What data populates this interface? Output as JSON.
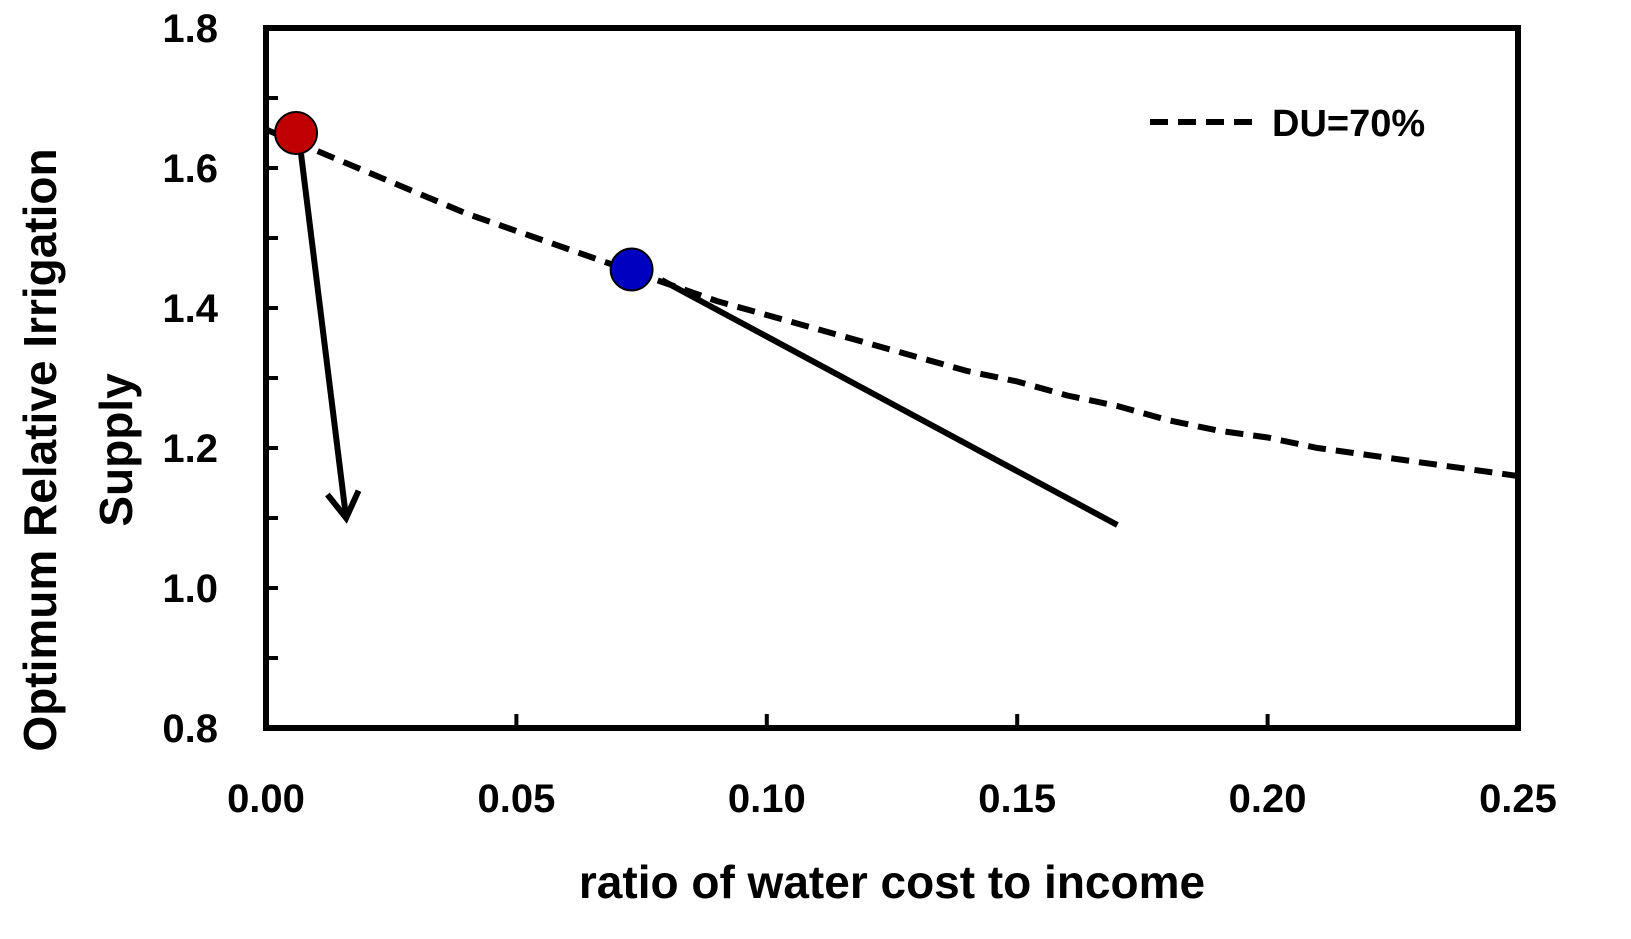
{
  "chart_data": {
    "type": "line",
    "xlabel": "ratio of water cost to income",
    "ylabel": [
      "Optimum Relative Irrigation",
      "Supply"
    ],
    "xlim": [
      0,
      0.25
    ],
    "ylim": [
      0.8,
      1.8
    ],
    "x_ticks": [
      0.0,
      0.05,
      0.1,
      0.15,
      0.2,
      0.25
    ],
    "x_tick_labels": [
      "0.00",
      "0.05",
      "0.10",
      "0.15",
      "0.20",
      "0.25"
    ],
    "y_ticks": [
      0.8,
      1.0,
      1.2,
      1.4,
      1.6,
      1.8
    ],
    "y_tick_labels": [
      "0.8",
      "1.0",
      "1.2",
      "1.4",
      "1.6",
      "1.8"
    ],
    "grid": false,
    "legend_position": "top-right",
    "series": [
      {
        "name": "DU=70%",
        "style": "dashed",
        "color": "#000000",
        "x": [
          0.0,
          0.01,
          0.02,
          0.03,
          0.04,
          0.05,
          0.06,
          0.07,
          0.08,
          0.09,
          0.1,
          0.11,
          0.12,
          0.13,
          0.14,
          0.15,
          0.16,
          0.17,
          0.18,
          0.19,
          0.2,
          0.21,
          0.22,
          0.23,
          0.24,
          0.25
        ],
        "y": [
          1.655,
          1.625,
          1.595,
          1.565,
          1.535,
          1.51,
          1.485,
          1.46,
          1.435,
          1.41,
          1.39,
          1.37,
          1.35,
          1.33,
          1.31,
          1.295,
          1.275,
          1.26,
          1.24,
          1.225,
          1.215,
          1.2,
          1.19,
          1.18,
          1.17,
          1.16
        ]
      }
    ],
    "markers": [
      {
        "name": "red-point",
        "x": 0.006,
        "y": 1.65,
        "color": "#c00000"
      },
      {
        "name": "blue-point",
        "x": 0.073,
        "y": 1.455,
        "color": "#0000c0"
      }
    ],
    "arrows": [
      {
        "name": "arrow-from-red",
        "x1": 0.007,
        "y1": 1.62,
        "x2": 0.016,
        "y2": 1.1,
        "arrowhead": true
      },
      {
        "name": "line-from-blue",
        "x1": 0.079,
        "y1": 1.44,
        "x2": 0.17,
        "y2": 1.09,
        "arrowhead": false
      }
    ]
  }
}
